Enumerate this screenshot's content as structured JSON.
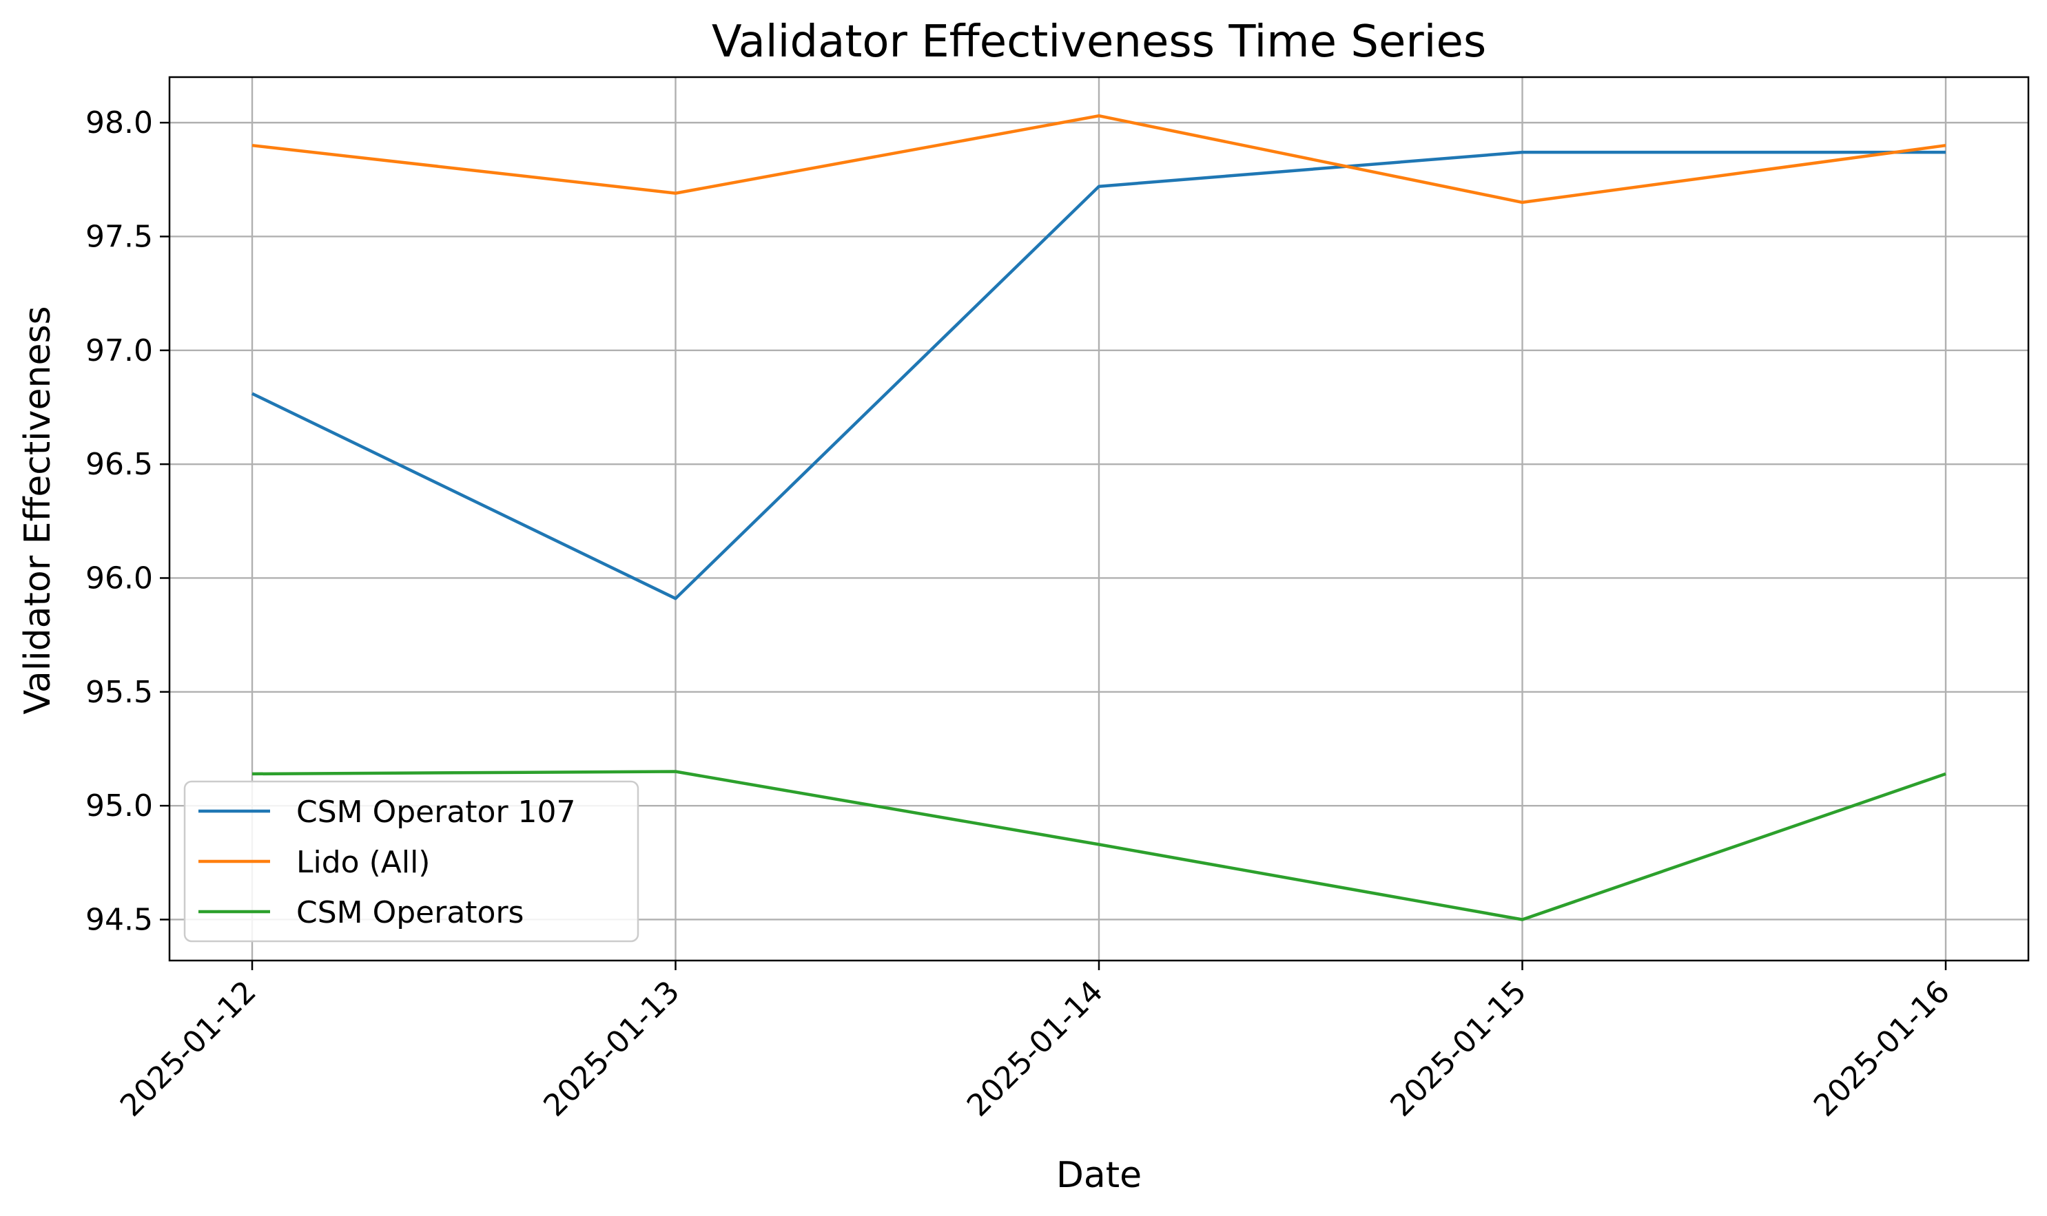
{
  "chart_data": {
    "type": "line",
    "title": "Validator Effectiveness Time Series",
    "xlabel": "Date",
    "ylabel": "Validator Effectiveness",
    "categories": [
      "2025-01-12",
      "2025-01-13",
      "2025-01-14",
      "2025-01-15",
      "2025-01-16"
    ],
    "yticks": [
      "94.5",
      "95.0",
      "95.5",
      "96.0",
      "96.5",
      "97.0",
      "97.5",
      "98.0"
    ],
    "ylim": [
      94.32,
      98.2
    ],
    "grid": true,
    "legend_position": "lower-left",
    "series": [
      {
        "name": "CSM Operator 107",
        "color": "#1f77b4",
        "values": [
          96.81,
          95.91,
          97.72,
          97.87,
          97.87
        ]
      },
      {
        "name": "Lido (All)",
        "color": "#ff7f0e",
        "values": [
          97.9,
          97.69,
          98.03,
          97.65,
          97.9
        ]
      },
      {
        "name": "CSM Operators",
        "color": "#2ca02c",
        "values": [
          95.14,
          95.15,
          94.83,
          94.5,
          95.14
        ]
      }
    ]
  }
}
